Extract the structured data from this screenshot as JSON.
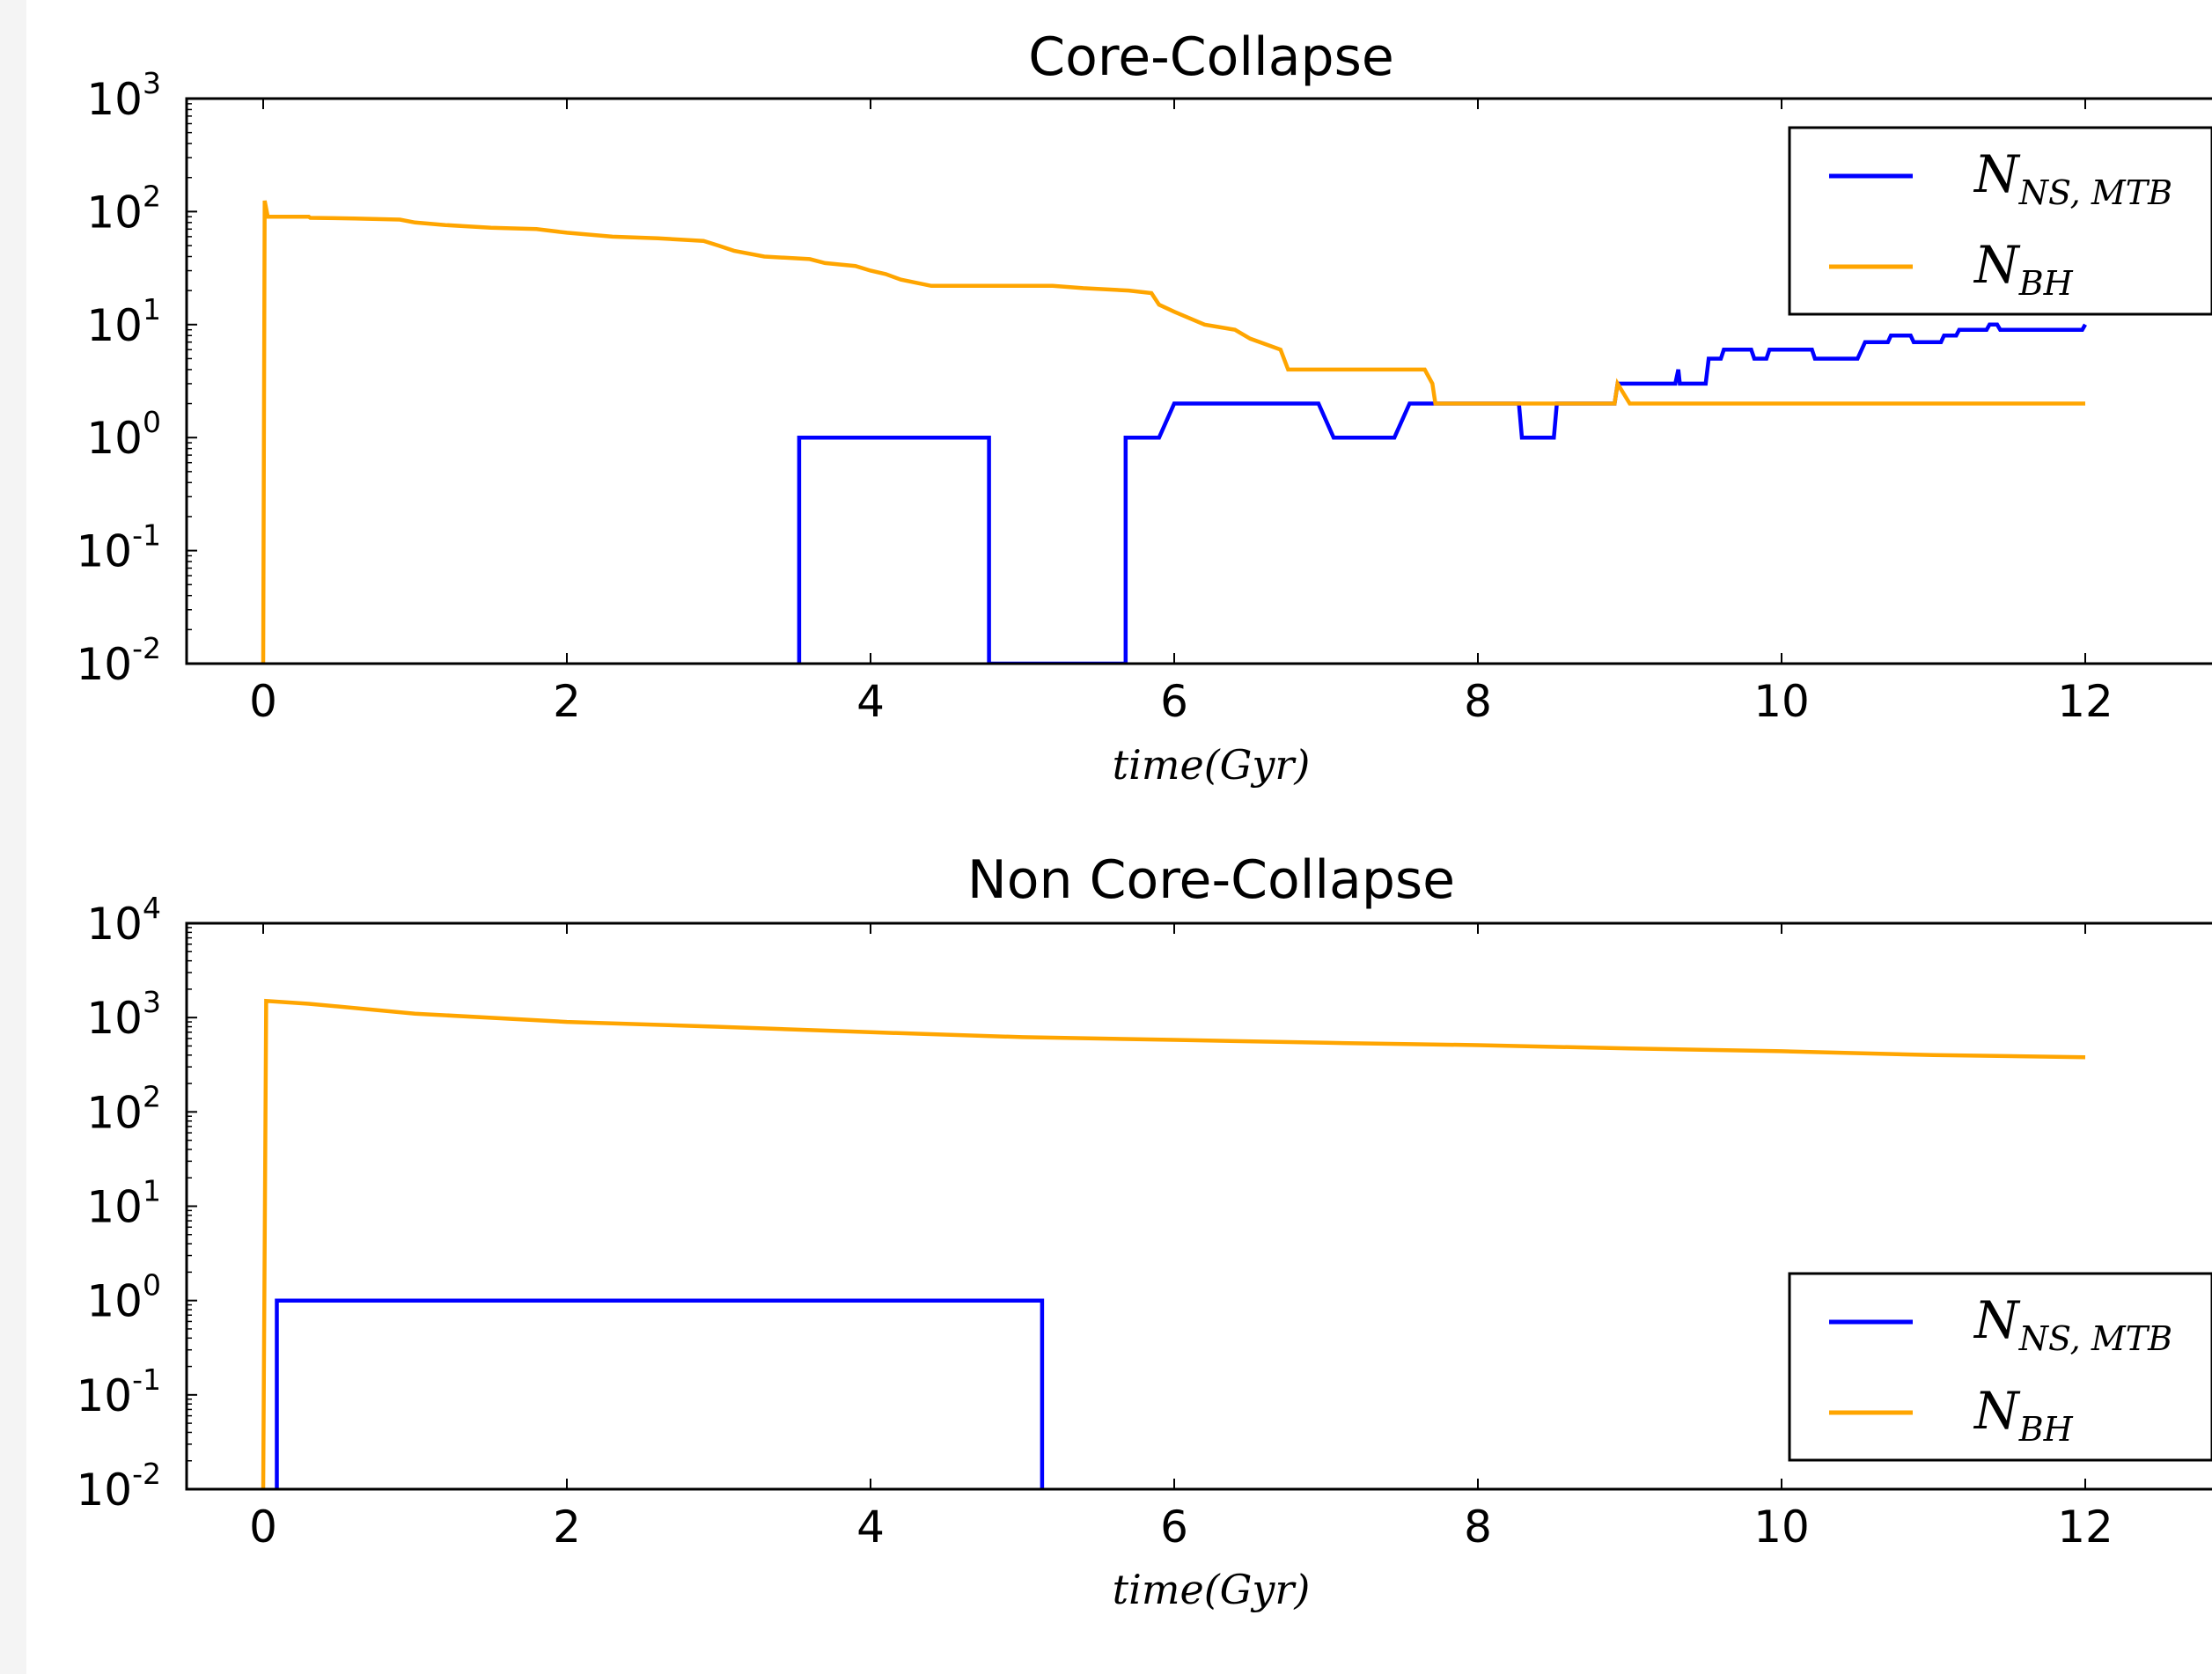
{
  "colors": {
    "ns": "#0000ff",
    "bh": "#ffa500",
    "axis": "#000000"
  },
  "chart_data": [
    {
      "type": "line",
      "title": "Core-Collapse",
      "xlabel": "time(Gyr)",
      "ylabel": "",
      "yscale": "log",
      "xlim": [
        -0.5,
        12.8
      ],
      "ylim": [
        0.01,
        1000
      ],
      "xticks": [
        "0",
        "2",
        "4",
        "6",
        "8",
        "10",
        "12"
      ],
      "yticks": [
        {
          "base": "10",
          "exp": "-2",
          "value": 0.01
        },
        {
          "base": "10",
          "exp": "-1",
          "value": 0.1
        },
        {
          "base": "10",
          "exp": "0",
          "value": 1
        },
        {
          "base": "10",
          "exp": "1",
          "value": 10
        },
        {
          "base": "10",
          "exp": "2",
          "value": 100
        },
        {
          "base": "10",
          "exp": "3",
          "value": 1000
        }
      ],
      "legend_position": "upper-right",
      "series": [
        {
          "name": "N_NS,MTB",
          "label_main": "N",
          "label_sub": "NS, MTB",
          "color": "#0000ff",
          "points": [
            [
              3.53,
              0.01
            ],
            [
              3.53,
              1
            ],
            [
              4.78,
              1
            ],
            [
              4.78,
              0.01
            ],
            [
              5.68,
              0.01
            ],
            [
              5.68,
              1
            ],
            [
              5.9,
              1
            ],
            [
              6.0,
              2
            ],
            [
              6.95,
              2
            ],
            [
              7.05,
              1
            ],
            [
              7.45,
              1
            ],
            [
              7.55,
              2
            ],
            [
              8.27,
              2
            ],
            [
              8.29,
              1
            ],
            [
              8.5,
              1
            ],
            [
              8.52,
              2
            ],
            [
              8.9,
              2
            ],
            [
              8.92,
              3
            ],
            [
              9.3,
              3
            ],
            [
              9.32,
              4
            ],
            [
              9.33,
              3
            ],
            [
              9.5,
              3
            ],
            [
              9.52,
              5
            ],
            [
              9.6,
              5
            ],
            [
              9.62,
              6
            ],
            [
              9.8,
              6
            ],
            [
              9.82,
              5
            ],
            [
              9.9,
              5
            ],
            [
              9.92,
              6
            ],
            [
              10.2,
              6
            ],
            [
              10.22,
              5
            ],
            [
              10.5,
              5
            ],
            [
              10.55,
              7
            ],
            [
              10.7,
              7
            ],
            [
              10.72,
              8
            ],
            [
              10.85,
              8
            ],
            [
              10.87,
              7
            ],
            [
              11.05,
              7
            ],
            [
              11.07,
              8
            ],
            [
              11.15,
              8
            ],
            [
              11.17,
              9
            ],
            [
              11.35,
              9
            ],
            [
              11.37,
              10
            ],
            [
              11.42,
              10
            ],
            [
              11.44,
              9
            ],
            [
              11.98,
              9
            ],
            [
              12.0,
              10
            ]
          ]
        },
        {
          "name": "N_BH",
          "label_main": "N",
          "label_sub": "BH",
          "color": "#ffa500",
          "points": [
            [
              0.0,
              0.01
            ],
            [
              0.01,
              125
            ],
            [
              0.03,
              90
            ],
            [
              0.3,
              90
            ],
            [
              0.31,
              88
            ],
            [
              0.6,
              87
            ],
            [
              0.9,
              85
            ],
            [
              1.0,
              80
            ],
            [
              1.2,
              76
            ],
            [
              1.5,
              72
            ],
            [
              1.8,
              70
            ],
            [
              2.0,
              65
            ],
            [
              2.3,
              60
            ],
            [
              2.6,
              58
            ],
            [
              2.9,
              55
            ],
            [
              3.0,
              50
            ],
            [
              3.1,
              45
            ],
            [
              3.3,
              40
            ],
            [
              3.6,
              38
            ],
            [
              3.7,
              35
            ],
            [
              3.9,
              33
            ],
            [
              4.0,
              30
            ],
            [
              4.1,
              28
            ],
            [
              4.2,
              25
            ],
            [
              4.4,
              22
            ],
            [
              4.6,
              22
            ],
            [
              5.2,
              22
            ],
            [
              5.4,
              21
            ],
            [
              5.7,
              20
            ],
            [
              5.85,
              19
            ],
            [
              5.9,
              15
            ],
            [
              6.0,
              13
            ],
            [
              6.2,
              10
            ],
            [
              6.4,
              9
            ],
            [
              6.5,
              7.5
            ],
            [
              6.7,
              6
            ],
            [
              6.75,
              4
            ],
            [
              7.65,
              4
            ],
            [
              7.7,
              3
            ],
            [
              7.72,
              2
            ],
            [
              8.9,
              2
            ],
            [
              8.92,
              3
            ],
            [
              9.0,
              2
            ],
            [
              9.1,
              2
            ],
            [
              12.0,
              2
            ]
          ]
        }
      ]
    },
    {
      "type": "line",
      "title": "Non Core-Collapse",
      "xlabel": "time(Gyr)",
      "ylabel": "",
      "yscale": "log",
      "xlim": [
        -0.5,
        12.8
      ],
      "ylim": [
        0.01,
        10000
      ],
      "xticks": [
        "0",
        "2",
        "4",
        "6",
        "8",
        "10",
        "12"
      ],
      "yticks": [
        {
          "base": "10",
          "exp": "-2",
          "value": 0.01
        },
        {
          "base": "10",
          "exp": "-1",
          "value": 0.1
        },
        {
          "base": "10",
          "exp": "0",
          "value": 1
        },
        {
          "base": "10",
          "exp": "1",
          "value": 10
        },
        {
          "base": "10",
          "exp": "2",
          "value": 100
        },
        {
          "base": "10",
          "exp": "3",
          "value": 1000
        },
        {
          "base": "10",
          "exp": "4",
          "value": 10000
        }
      ],
      "legend_position": "lower-right",
      "series": [
        {
          "name": "N_NS,MTB",
          "label_main": "N",
          "label_sub": "NS, MTB",
          "color": "#0000ff",
          "points": [
            [
              0.09,
              0.01
            ],
            [
              0.09,
              1
            ],
            [
              5.13,
              1
            ],
            [
              5.13,
              0.01
            ]
          ]
        },
        {
          "name": "N_BH",
          "label_main": "N",
          "label_sub": "BH",
          "color": "#ffa500",
          "points": [
            [
              0.0,
              0.01
            ],
            [
              0.02,
              1500
            ],
            [
              0.3,
              1400
            ],
            [
              1.0,
              1100
            ],
            [
              2.0,
              900
            ],
            [
              3.0,
              800
            ],
            [
              4.0,
              700
            ],
            [
              5.0,
              620
            ],
            [
              6.0,
              580
            ],
            [
              7.0,
              540
            ],
            [
              8.0,
              510
            ],
            [
              9.0,
              470
            ],
            [
              10.0,
              440
            ],
            [
              11.0,
              400
            ],
            [
              12.0,
              380
            ]
          ]
        }
      ]
    }
  ]
}
